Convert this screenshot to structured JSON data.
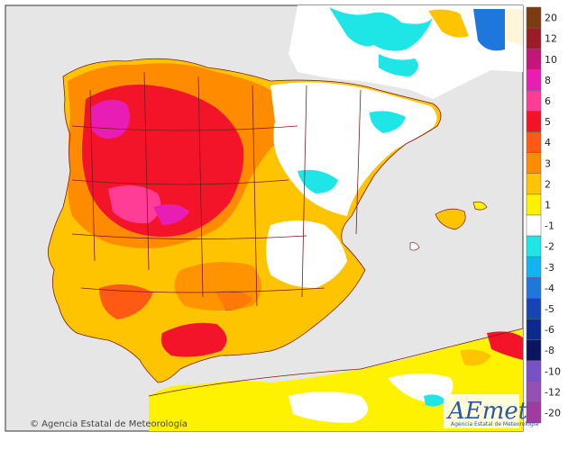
{
  "legend": {
    "items": [
      {
        "label": "20",
        "color": "#7a3c10"
      },
      {
        "label": "12",
        "color": "#9c1d28"
      },
      {
        "label": "10",
        "color": "#c4157a"
      },
      {
        "label": "8",
        "color": "#e81eb4"
      },
      {
        "label": "6",
        "color": "#ff3c96"
      },
      {
        "label": "5",
        "color": "#f4142a"
      },
      {
        "label": "4",
        "color": "#ff5a14"
      },
      {
        "label": "3",
        "color": "#ff8c00"
      },
      {
        "label": "2",
        "color": "#ffc400"
      },
      {
        "label": "1",
        "color": "#fff200"
      },
      {
        "label": "-1",
        "color": "#ffffff"
      },
      {
        "label": "-2",
        "color": "#1ee6e6"
      },
      {
        "label": "-3",
        "color": "#14b4f0"
      },
      {
        "label": "-4",
        "color": "#1e78dc"
      },
      {
        "label": "-5",
        "color": "#1646b4"
      },
      {
        "label": "-6",
        "color": "#0c2a8c"
      },
      {
        "label": "-8",
        "color": "#0a1660"
      },
      {
        "label": "-10",
        "color": "#7850c8"
      },
      {
        "label": "-12",
        "color": "#9650b4"
      },
      {
        "label": "-20",
        "color": "#a03ca0"
      }
    ]
  },
  "credit": "© Agencia Estatal de Meteorología",
  "logo": {
    "name": "AEmet",
    "subtitle": "Agencia Estatal de Meteorología"
  },
  "colors": {
    "sea": "#e6e6e6",
    "border": "#7a1a1a",
    "frame": "#333333"
  }
}
